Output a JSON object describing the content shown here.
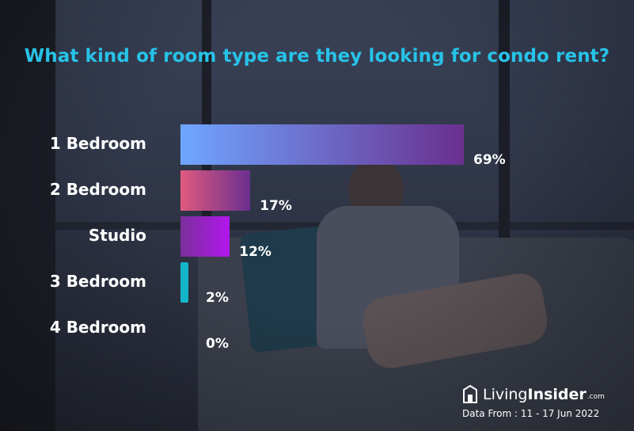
{
  "chart_data": {
    "type": "bar",
    "orientation": "horizontal",
    "title": "What kind of room type are they looking for condo rent?",
    "categories": [
      "1 Bedroom",
      "2 Bedroom",
      "Studio",
      "3 Bedroom",
      "4 Bedroom"
    ],
    "values": [
      69,
      17,
      12,
      2,
      0
    ],
    "value_labels": [
      "69%",
      "17%",
      "12%",
      "2%",
      "0%"
    ],
    "xlim": [
      0,
      69
    ],
    "grid": false,
    "colors": [
      [
        "#6fa6ff",
        "#6a2f8f"
      ],
      [
        "#e05a7e",
        "#6a2f8f"
      ],
      [
        "#7a2f9a",
        "#b216ee"
      ],
      [
        "#14b5c8",
        "#14b5c8"
      ],
      [
        "#14b5c8",
        "#14b5c8"
      ]
    ]
  },
  "branding": {
    "logo_living": "Living",
    "logo_insider": "Insider",
    "logo_com": ".com",
    "data_from": "Data From : 11 - 17 Jun 2022"
  }
}
